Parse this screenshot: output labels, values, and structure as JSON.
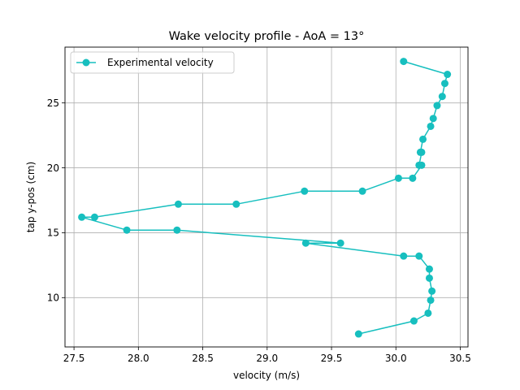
{
  "chart_data": {
    "type": "line",
    "title": "Wake velocity profile - AoA = 13°",
    "xlabel": "velocity (m/s)",
    "ylabel": "tap y-pos (cm)",
    "xlim": [
      27.43,
      30.56
    ],
    "ylim": [
      6.2,
      29.3
    ],
    "xticks": [
      27.5,
      28.0,
      28.5,
      29.0,
      29.5,
      30.0,
      30.5
    ],
    "xtick_labels": [
      "27.5",
      "28.0",
      "28.5",
      "29.0",
      "29.5",
      "30.0",
      "30.5"
    ],
    "yticks": [
      10,
      15,
      20,
      25
    ],
    "ytick_labels": [
      "10",
      "15",
      "20",
      "25"
    ],
    "grid": true,
    "legend": "upper-left",
    "series": [
      {
        "name": "Experimental velocity",
        "color": "#17bfbf",
        "marker": "circle",
        "x": [
          30.06,
          30.4,
          30.38,
          30.36,
          30.32,
          30.29,
          30.27,
          30.21,
          30.19,
          30.2,
          30.18,
          30.2,
          30.13,
          30.02,
          29.74,
          29.29,
          28.76,
          28.31,
          27.66,
          27.56,
          27.91,
          28.3,
          29.57,
          29.3,
          30.06,
          30.18,
          30.26,
          30.26,
          30.28,
          30.27,
          30.25,
          30.14,
          29.71
        ],
        "y": [
          28.2,
          27.2,
          26.5,
          25.5,
          24.8,
          23.8,
          23.2,
          22.2,
          21.2,
          21.2,
          20.2,
          20.2,
          19.2,
          19.2,
          18.2,
          18.2,
          17.2,
          17.2,
          16.2,
          16.2,
          15.2,
          15.2,
          14.2,
          14.2,
          13.2,
          13.2,
          12.2,
          11.5,
          10.5,
          9.8,
          8.8,
          8.2,
          7.2
        ]
      }
    ]
  }
}
